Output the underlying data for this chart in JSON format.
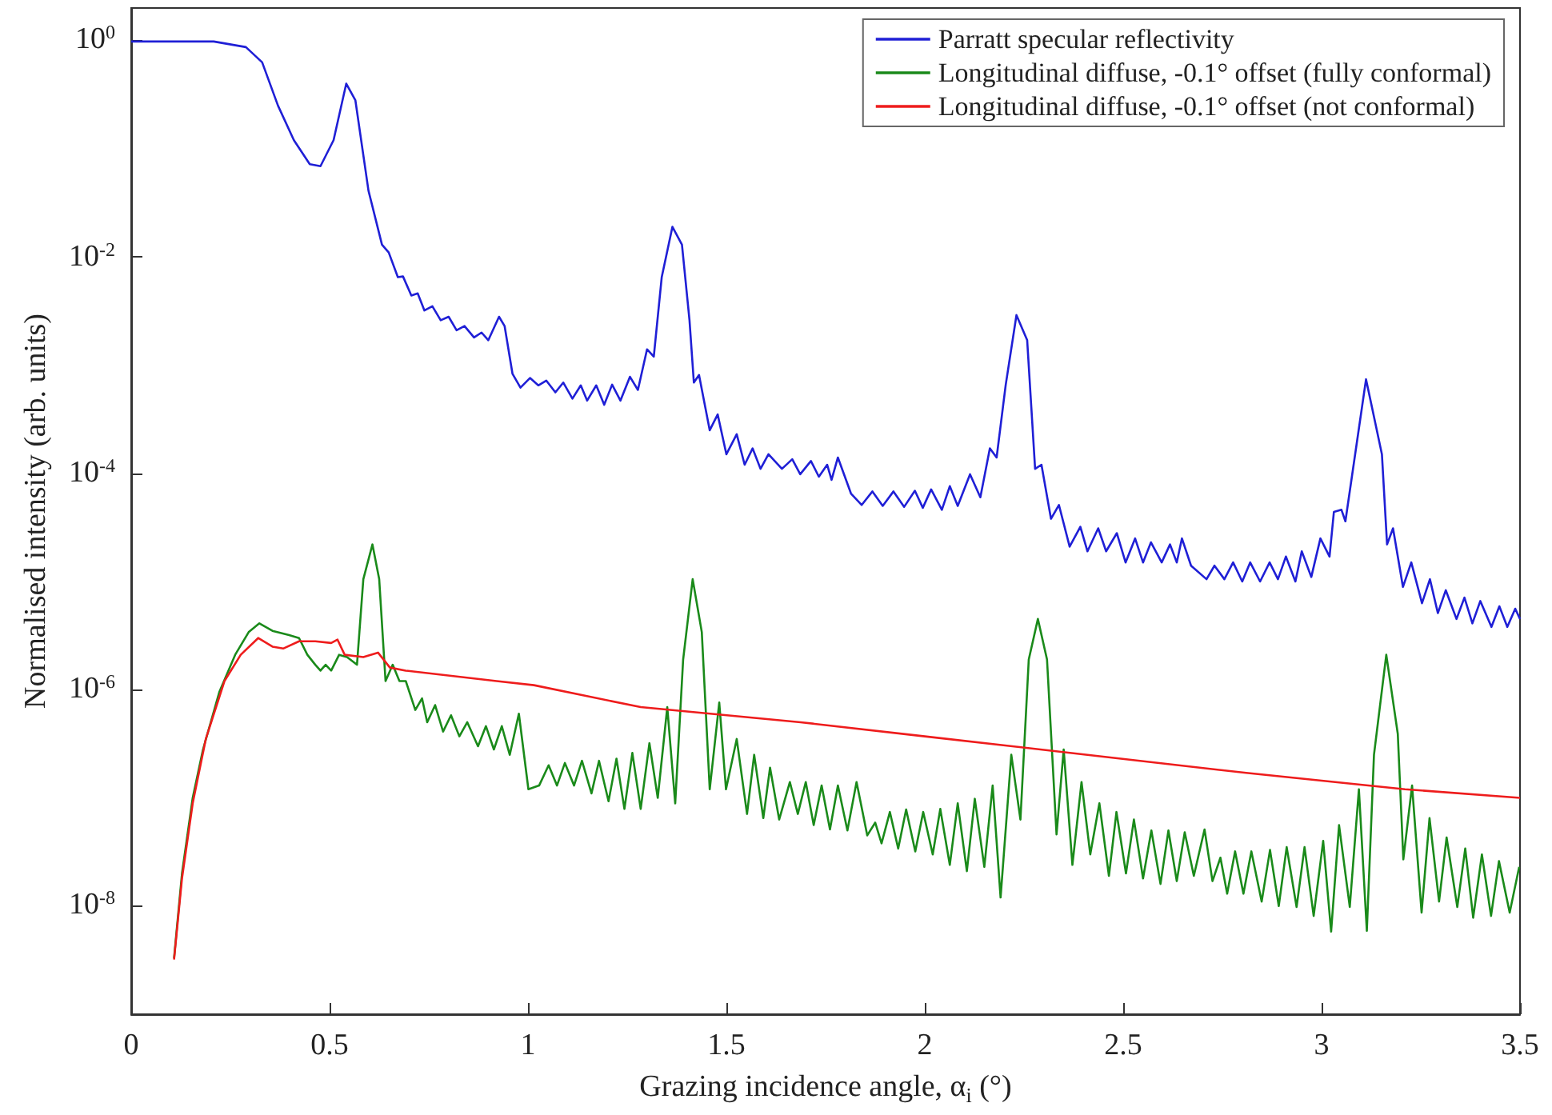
{
  "chart_data": {
    "type": "line",
    "xlabel": "Grazing incidence angle, α$_{i}$ (°)",
    "ylabel": "Normalised intensity (arb. units)",
    "log": "y",
    "grid": false,
    "legend": "top right",
    "xlim": [
      0,
      3.5
    ],
    "xticks": [
      0,
      0.5,
      1,
      1.5,
      2,
      2.5,
      3,
      3.5
    ],
    "ylim": [
      1e-09,
      2
    ],
    "yticks": [
      {
        "value": 1e-08,
        "label": "10$^{-8}$"
      },
      {
        "value": 1e-06,
        "label": "10$^{-6}$"
      },
      {
        "value": 0.0001,
        "label": "10$^{-4}$"
      },
      {
        "value": 0.01,
        "label": "10$^{-2}$"
      },
      {
        "value": 1,
        "label": "10$^{0}$"
      }
    ],
    "series": [
      {
        "name": "Parratt specular reflectivity",
        "color": "#1f1fd6",
        "x": [
          0,
          0.208,
          0.289,
          0.33,
          0.37,
          0.41,
          0.45,
          0.477,
          0.51,
          0.542,
          0.565,
          0.598,
          0.632,
          0.649,
          0.672,
          0.685,
          0.706,
          0.722,
          0.739,
          0.759,
          0.78,
          0.8,
          0.82,
          0.84,
          0.864,
          0.883,
          0.9,
          0.927,
          0.941,
          0.961,
          0.981,
          1.005,
          1.026,
          1.046,
          1.069,
          1.089,
          1.112,
          1.133,
          1.149,
          1.172,
          1.192,
          1.212,
          1.233,
          1.257,
          1.277,
          1.3,
          1.317,
          1.337,
          1.364,
          1.388,
          1.407,
          1.418,
          1.431,
          1.458,
          1.478,
          1.5,
          1.526,
          1.546,
          1.566,
          1.586,
          1.606,
          1.64,
          1.666,
          1.686,
          1.713,
          1.733,
          1.754,
          1.765,
          1.781,
          1.814,
          1.841,
          1.868,
          1.894,
          1.921,
          1.948,
          1.975,
          1.995,
          2.016,
          2.043,
          2.063,
          2.083,
          2.114,
          2.14,
          2.164,
          2.181,
          2.204,
          2.231,
          2.258,
          2.278,
          2.294,
          2.318,
          2.338,
          2.365,
          2.392,
          2.41,
          2.437,
          2.457,
          2.484,
          2.506,
          2.53,
          2.55,
          2.57,
          2.597,
          2.618,
          2.635,
          2.648,
          2.671,
          2.71,
          2.73,
          2.755,
          2.777,
          2.8,
          2.82,
          2.845,
          2.869,
          2.89,
          2.91,
          2.934,
          2.95,
          2.974,
          2.997,
          3.02,
          3.031,
          3.05,
          3.06,
          3.112,
          3.152,
          3.165,
          3.18,
          3.205,
          3.226,
          3.253,
          3.273,
          3.293,
          3.313,
          3.34,
          3.36,
          3.38,
          3.4,
          3.428,
          3.448,
          3.468,
          3.488,
          3.5
        ],
        "values": [
          0.98,
          0.98,
          0.87,
          0.63,
          0.25,
          0.12,
          0.072,
          0.069,
          0.12,
          0.4,
          0.28,
          0.041,
          0.013,
          0.011,
          0.0065,
          0.0066,
          0.0044,
          0.0046,
          0.0032,
          0.0035,
          0.0026,
          0.0028,
          0.0021,
          0.0023,
          0.0018,
          0.002,
          0.0017,
          0.0028,
          0.0023,
          0.00083,
          0.00062,
          0.00076,
          0.00065,
          0.00072,
          0.00056,
          0.00069,
          0.00049,
          0.00065,
          0.00047,
          0.00065,
          0.00043,
          0.00066,
          0.00047,
          0.00078,
          0.00059,
          0.0014,
          0.0012,
          0.0065,
          0.019,
          0.013,
          0.0026,
          0.00069,
          0.00081,
          0.00025,
          0.00035,
          0.00015,
          0.00023,
          0.00012,
          0.00017,
          0.00011,
          0.00015,
          0.00011,
          0.000135,
          9.8e-05,
          0.00013,
          9.3e-05,
          0.00012,
          8.7e-05,
          0.00014,
          6.5e-05,
          5.1e-05,
          6.8e-05,
          5e-05,
          6.8e-05,
          4.9e-05,
          6.9e-05,
          4.8e-05,
          7.1e-05,
          4.6e-05,
          7.6e-05,
          5e-05,
          9.8e-05,
          6e-05,
          0.00017,
          0.00014,
          0.00066,
          0.0029,
          0.0017,
          0.00011,
          0.00012,
          3.8e-05,
          5.1e-05,
          2.1e-05,
          3.2e-05,
          1.9e-05,
          3.1e-05,
          1.9e-05,
          2.8e-05,
          1.5e-05,
          2.5e-05,
          1.5e-05,
          2.3e-05,
          1.5e-05,
          2.2e-05,
          1.5e-05,
          2.5e-05,
          1.4e-05,
          1.05e-05,
          1.4e-05,
          1.05e-05,
          1.5e-05,
          1e-05,
          1.5e-05,
          1e-05,
          1.5e-05,
          1.05e-05,
          1.7e-05,
          1e-05,
          1.9e-05,
          1.1e-05,
          2.5e-05,
          1.7e-05,
          4.4e-05,
          4.6e-05,
          3.6e-05,
          0.00074,
          0.00015,
          2.2e-05,
          3.1e-05,
          8.9e-06,
          1.5e-05,
          6.3e-06,
          1.05e-05,
          5.1e-06,
          8.3e-06,
          4.5e-06,
          7.1e-06,
          4.1e-06,
          6.6e-06,
          3.8e-06,
          5.9e-06,
          3.8e-06,
          5.6e-06,
          4.5e-06
        ]
      },
      {
        "name": "Longitudinal diffuse, -0.1° offset (fully conformal)",
        "color": "#1a8a1a",
        "x": [
          0.108,
          0.128,
          0.155,
          0.181,
          0.222,
          0.262,
          0.296,
          0.323,
          0.356,
          0.398,
          0.423,
          0.444,
          0.464,
          0.477,
          0.49,
          0.504,
          0.524,
          0.544,
          0.569,
          0.585,
          0.608,
          0.625,
          0.641,
          0.659,
          0.676,
          0.692,
          0.716,
          0.733,
          0.746,
          0.766,
          0.786,
          0.806,
          0.827,
          0.847,
          0.874,
          0.894,
          0.914,
          0.934,
          0.954,
          0.977,
          1.001,
          1.028,
          1.052,
          1.073,
          1.093,
          1.116,
          1.136,
          1.16,
          1.179,
          1.203,
          1.223,
          1.243,
          1.263,
          1.284,
          1.306,
          1.327,
          1.351,
          1.371,
          1.391,
          1.415,
          1.438,
          1.458,
          1.482,
          1.499,
          1.526,
          1.552,
          1.57,
          1.593,
          1.61,
          1.633,
          1.66,
          1.68,
          1.7,
          1.72,
          1.74,
          1.761,
          1.781,
          1.805,
          1.828,
          1.855,
          1.875,
          1.891,
          1.912,
          1.933,
          1.953,
          1.976,
          1.996,
          2.02,
          2.039,
          2.063,
          2.083,
          2.106,
          2.126,
          2.15,
          2.171,
          2.191,
          2.218,
          2.241,
          2.262,
          2.285,
          2.308,
          2.332,
          2.35,
          2.372,
          2.395,
          2.417,
          2.44,
          2.464,
          2.483,
          2.507,
          2.527,
          2.55,
          2.571,
          2.594,
          2.614,
          2.635,
          2.655,
          2.678,
          2.705,
          2.725,
          2.745,
          2.762,
          2.782,
          2.803,
          2.823,
          2.849,
          2.87,
          2.892,
          2.912,
          2.937,
          2.957,
          2.98,
          3.004,
          3.024,
          3.044,
          3.071,
          3.094,
          3.114,
          3.132,
          3.163,
          3.192,
          3.206,
          3.228,
          3.252,
          3.272,
          3.296,
          3.315,
          3.342,
          3.362,
          3.382,
          3.404,
          3.427,
          3.447,
          3.474,
          3.498
        ],
        "values": [
          3.3e-09,
          2e-08,
          1e-07,
          2.8e-07,
          9.5e-07,
          2.1e-06,
          3.4e-06,
          4.1e-06,
          3.5e-06,
          3.2e-06,
          3e-06,
          2.1e-06,
          1.7e-06,
          1.5e-06,
          1.7e-06,
          1.5e-06,
          2.1e-06,
          2e-06,
          1.7e-06,
          1.05e-05,
          2.2e-05,
          1.05e-05,
          1.2e-06,
          1.7e-06,
          1.2e-06,
          1.2e-06,
          6.5e-07,
          8.3e-07,
          5e-07,
          7.2e-07,
          4.1e-07,
          5.8e-07,
          3.7e-07,
          5e-07,
          3e-07,
          4.6e-07,
          2.8e-07,
          4.6e-07,
          2.5e-07,
          6e-07,
          1.2e-07,
          1.3e-07,
          2e-07,
          1.3e-07,
          2.1e-07,
          1.3e-07,
          2.2e-07,
          1.1e-07,
          2.2e-07,
          9.3e-08,
          2.3e-07,
          7.9e-08,
          2.6e-07,
          7.9e-08,
          3.2e-07,
          1e-07,
          6.9e-07,
          8.9e-08,
          1.9e-06,
          1.05e-05,
          3.4e-06,
          1.2e-07,
          7.6e-07,
          1.2e-07,
          3.5e-07,
          7.1e-08,
          2.5e-07,
          6.5e-08,
          1.9e-07,
          6.3e-08,
          1.4e-07,
          7.1e-08,
          1.4e-07,
          5.6e-08,
          1.3e-07,
          5.1e-08,
          1.3e-07,
          5e-08,
          1.4e-07,
          4.5e-08,
          5.9e-08,
          3.8e-08,
          7.4e-08,
          3.4e-08,
          7.8e-08,
          3.2e-08,
          7.4e-08,
          3e-08,
          7.9e-08,
          2.4e-08,
          8.9e-08,
          2.1e-08,
          9.8e-08,
          2.3e-08,
          1.3e-07,
          1.2e-08,
          2.5e-07,
          6.3e-08,
          1.9e-06,
          4.5e-06,
          1.9e-06,
          4.6e-08,
          2.8e-07,
          2.4e-08,
          1.4e-07,
          3e-08,
          8.9e-08,
          1.9e-08,
          7.4e-08,
          2e-08,
          6.3e-08,
          1.8e-08,
          5e-08,
          1.6e-08,
          5e-08,
          1.7e-08,
          4.8e-08,
          1.9e-08,
          5.1e-08,
          1.7e-08,
          2.8e-08,
          1.3e-08,
          3.2e-08,
          1.3e-08,
          3.2e-08,
          1.1e-08,
          3.3e-08,
          1e-08,
          3.5e-08,
          9.8e-09,
          3.5e-08,
          8.1e-09,
          4e-08,
          5.8e-09,
          5.6e-08,
          9.8e-09,
          1.2e-07,
          5.9e-09,
          2.5e-07,
          2.1e-06,
          3.9e-07,
          2.7e-08,
          1.3e-07,
          8.7e-09,
          6.5e-08,
          1.1e-08,
          4.3e-08,
          9.8e-09,
          3.4e-08,
          7.8e-09,
          3e-08,
          8.1e-09,
          2.6e-08,
          8.7e-09,
          2.3e-08
        ]
      },
      {
        "name": "Longitudinal diffuse, -0.1° offset (not conformal)",
        "color": "#ee1c1c",
        "x": [
          0.108,
          0.128,
          0.155,
          0.188,
          0.235,
          0.276,
          0.32,
          0.356,
          0.383,
          0.423,
          0.464,
          0.504,
          0.52,
          0.538,
          0.585,
          0.622,
          0.652,
          0.692,
          0.921,
          1.015,
          1.284,
          1.687,
          2.0,
          2.41,
          2.81,
          3.21,
          3.5
        ],
        "values": [
          3.2e-09,
          1.8e-08,
          8.9e-08,
          3.5e-07,
          1.2e-06,
          2.1e-06,
          3e-06,
          2.5e-06,
          2.4e-06,
          2.8e-06,
          2.8e-06,
          2.7e-06,
          2.9e-06,
          2.1e-06,
          2e-06,
          2.2e-06,
          1.6e-06,
          1.5e-06,
          1.2e-06,
          1.1e-06,
          6.9e-07,
          5e-07,
          3.7e-07,
          2.5e-07,
          1.7e-07,
          1.2e-07,
          1e-07
        ]
      }
    ]
  }
}
